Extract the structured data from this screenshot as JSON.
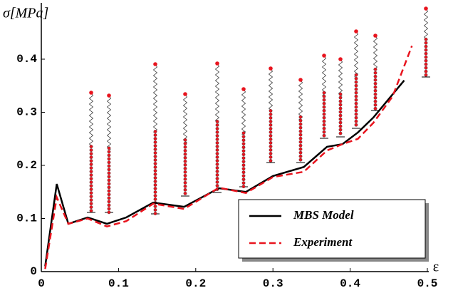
{
  "chart_data": {
    "type": "line",
    "y_label": "σ[MPa]",
    "x_label": "ε",
    "xlim": [
      0,
      0.5
    ],
    "ylim": [
      0,
      0.5
    ],
    "xticks": [
      0,
      0.1,
      0.2,
      0.3,
      0.4,
      0.5
    ],
    "yticks": [
      0,
      0.1,
      0.2,
      0.3,
      0.4
    ],
    "series": [
      {
        "name": "MBS Model",
        "color": "#000000",
        "dashed": false,
        "x": [
          0.005,
          0.02,
          0.035,
          0.06,
          0.085,
          0.11,
          0.145,
          0.185,
          0.23,
          0.265,
          0.3,
          0.34,
          0.37,
          0.39,
          0.41,
          0.43,
          0.47
        ],
        "values": [
          0.01,
          0.165,
          0.09,
          0.102,
          0.09,
          0.102,
          0.13,
          0.122,
          0.157,
          0.15,
          0.18,
          0.197,
          0.235,
          0.24,
          0.262,
          0.29,
          0.36
        ]
      },
      {
        "name": "Experiment",
        "color": "#e8141e",
        "dashed": true,
        "x": [
          0.005,
          0.02,
          0.035,
          0.06,
          0.085,
          0.11,
          0.145,
          0.185,
          0.23,
          0.265,
          0.3,
          0.34,
          0.37,
          0.39,
          0.41,
          0.43,
          0.455,
          0.48
        ],
        "values": [
          0.005,
          0.14,
          0.09,
          0.1,
          0.085,
          0.095,
          0.128,
          0.118,
          0.158,
          0.148,
          0.178,
          0.188,
          0.228,
          0.24,
          0.25,
          0.28,
          0.33,
          0.425
        ]
      }
    ]
  }
}
